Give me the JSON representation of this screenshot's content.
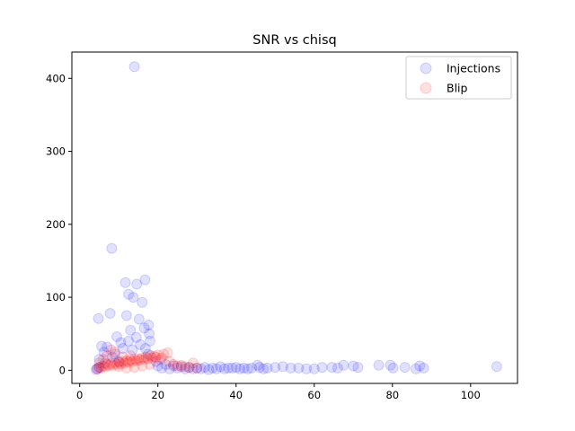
{
  "chart_data": {
    "type": "scatter",
    "title": "SNR vs chisq",
    "xlabel": "",
    "ylabel": "",
    "xlim": [
      -2,
      112
    ],
    "ylim": [
      -18,
      436
    ],
    "xticks": [
      0,
      20,
      40,
      60,
      80,
      100
    ],
    "yticks": [
      0,
      100,
      200,
      300,
      400
    ],
    "grid": false,
    "legend_position": "top-right",
    "series": [
      {
        "name": "Injections",
        "color": "#0000ff",
        "points": [
          [
            14.0,
            416
          ],
          [
            8.2,
            167
          ],
          [
            16.7,
            124
          ],
          [
            11.7,
            120
          ],
          [
            14.6,
            118
          ],
          [
            12.5,
            104
          ],
          [
            13.7,
            100
          ],
          [
            16.0,
            93
          ],
          [
            7.8,
            78
          ],
          [
            4.8,
            71
          ],
          [
            15.2,
            70
          ],
          [
            12.0,
            75
          ],
          [
            17.6,
            62
          ],
          [
            9.5,
            46
          ],
          [
            13.0,
            55
          ],
          [
            16.5,
            58
          ],
          [
            17.8,
            50
          ],
          [
            14.5,
            45
          ],
          [
            10.5,
            38
          ],
          [
            5.6,
            33
          ],
          [
            7.0,
            32
          ],
          [
            12.5,
            40
          ],
          [
            15.5,
            35
          ],
          [
            18.0,
            40
          ],
          [
            11.0,
            30
          ],
          [
            6.2,
            25
          ],
          [
            9.0,
            22
          ],
          [
            13.5,
            28
          ],
          [
            16.8,
            30
          ],
          [
            8.4,
            18
          ],
          [
            5.0,
            15
          ],
          [
            17.5,
            22
          ],
          [
            19.5,
            12
          ],
          [
            6.5,
            10
          ],
          [
            10.0,
            12
          ],
          [
            22.0,
            8
          ],
          [
            24.0,
            6
          ],
          [
            26.0,
            5
          ],
          [
            28.0,
            4
          ],
          [
            30.0,
            3
          ],
          [
            32.0,
            4
          ],
          [
            34.0,
            3
          ],
          [
            36.0,
            5
          ],
          [
            38.0,
            3
          ],
          [
            40.0,
            4
          ],
          [
            42.0,
            3
          ],
          [
            45.5,
            7
          ],
          [
            48.0,
            3
          ],
          [
            50.0,
            4
          ],
          [
            52.0,
            5
          ],
          [
            54.0,
            3
          ],
          [
            56.0,
            3
          ],
          [
            58.0,
            2
          ],
          [
            60.0,
            2
          ],
          [
            62.0,
            4
          ],
          [
            64.5,
            4
          ],
          [
            66.0,
            3
          ],
          [
            67.5,
            7
          ],
          [
            70.0,
            6
          ],
          [
            71.2,
            4
          ],
          [
            76.5,
            7
          ],
          [
            79.5,
            7
          ],
          [
            80.2,
            3
          ],
          [
            83.2,
            4
          ],
          [
            86.0,
            2
          ],
          [
            87.0,
            6
          ],
          [
            88.0,
            3
          ],
          [
            106.7,
            5
          ],
          [
            4.5,
            2
          ],
          [
            5.0,
            4
          ],
          [
            4.2,
            1
          ],
          [
            20.0,
            6
          ],
          [
            21.0,
            3
          ],
          [
            23.0,
            2
          ],
          [
            25.0,
            3
          ],
          [
            27.0,
            2
          ],
          [
            29.0,
            2
          ],
          [
            31.0,
            2
          ],
          [
            33.0,
            1
          ],
          [
            35.0,
            2
          ],
          [
            37.0,
            2
          ],
          [
            39.0,
            3
          ],
          [
            41.0,
            2
          ],
          [
            43.0,
            2
          ],
          [
            44.0,
            3
          ],
          [
            46.0,
            4
          ],
          [
            47.0,
            2
          ]
        ]
      },
      {
        "name": "Blip",
        "color": "#ff0000",
        "points": [
          [
            4.5,
            2
          ],
          [
            5.0,
            4
          ],
          [
            5.5,
            3
          ],
          [
            6.0,
            6
          ],
          [
            6.5,
            5
          ],
          [
            7.0,
            8
          ],
          [
            7.5,
            6
          ],
          [
            8.0,
            9
          ],
          [
            8.5,
            7
          ],
          [
            9.0,
            10
          ],
          [
            9.5,
            8
          ],
          [
            10.0,
            11
          ],
          [
            10.5,
            9
          ],
          [
            11.0,
            12
          ],
          [
            11.5,
            10
          ],
          [
            12.0,
            13
          ],
          [
            12.5,
            11
          ],
          [
            13.0,
            14
          ],
          [
            13.5,
            12
          ],
          [
            14.0,
            15
          ],
          [
            14.5,
            13
          ],
          [
            15.0,
            16
          ],
          [
            15.5,
            14
          ],
          [
            16.0,
            17
          ],
          [
            16.5,
            15
          ],
          [
            17.0,
            18
          ],
          [
            17.5,
            16
          ],
          [
            18.0,
            20
          ],
          [
            18.5,
            17
          ],
          [
            19.0,
            19
          ],
          [
            19.5,
            18
          ],
          [
            20.0,
            21
          ],
          [
            20.5,
            15
          ],
          [
            21.0,
            17
          ],
          [
            21.5,
            22
          ],
          [
            22.5,
            24
          ],
          [
            23.0,
            12
          ],
          [
            24.0,
            8
          ],
          [
            25.0,
            6
          ],
          [
            26.0,
            7
          ],
          [
            27.0,
            5
          ],
          [
            28.0,
            4
          ],
          [
            29.0,
            10
          ],
          [
            30.0,
            3
          ],
          [
            7.0,
            20
          ],
          [
            8.0,
            28
          ],
          [
            9.0,
            25
          ],
          [
            6.0,
            15
          ],
          [
            10.0,
            5
          ],
          [
            12.0,
            3
          ],
          [
            14.0,
            4
          ],
          [
            16.0,
            6
          ],
          [
            18.0,
            8
          ],
          [
            5.0,
            10
          ],
          [
            11.0,
            18
          ],
          [
            13.0,
            20
          ]
        ]
      }
    ]
  }
}
